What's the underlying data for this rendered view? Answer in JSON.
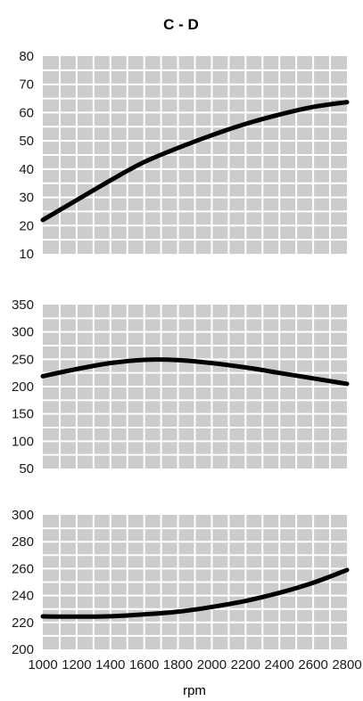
{
  "chart_data": {
    "type": "line",
    "title": "C - D",
    "xlabel": "rpm",
    "x_ticks": [
      "1000",
      "1200",
      "1400",
      "1600",
      "1800",
      "2000",
      "2200",
      "2400",
      "2600",
      "2800"
    ],
    "xlim": [
      1000,
      2800
    ],
    "grid": true,
    "colors": {
      "plot_background": "#cccccc",
      "grid": "#ffffff",
      "line": "#000000"
    },
    "panels": [
      {
        "ylim": [
          10,
          80
        ],
        "y_ticks": [
          "80",
          "70",
          "60",
          "50",
          "40",
          "30",
          "20",
          "10"
        ],
        "series": [
          {
            "x": [
              1000,
              1200,
              1400,
              1600,
              1800,
              2000,
              2200,
              2400,
              2600,
              2800
            ],
            "values": [
              22,
              29,
              36,
              42.5,
              47.5,
              52,
              56,
              59.3,
              62,
              63.7
            ]
          }
        ]
      },
      {
        "ylim": [
          50,
          350
        ],
        "y_ticks": [
          "350",
          "300",
          "250",
          "200",
          "150",
          "100",
          "50"
        ],
        "series": [
          {
            "x": [
              1000,
              1200,
              1400,
              1600,
              1800,
              2000,
              2200,
              2400,
              2600,
              2800
            ],
            "values": [
              219,
              232,
              243,
              249,
              248.5,
              243,
              235,
              225,
              215,
              205
            ]
          }
        ]
      },
      {
        "ylim": [
          200,
          300
        ],
        "y_ticks": [
          "300",
          "280",
          "260",
          "240",
          "220",
          "200"
        ],
        "series": [
          {
            "x": [
              1000,
              1200,
              1400,
              1600,
              1800,
              2000,
              2200,
              2400,
              2600,
              2800
            ],
            "values": [
              224.5,
              224.3,
              224.6,
              226,
              228,
              231.5,
              236,
              242,
              249.5,
              259
            ]
          }
        ]
      }
    ]
  }
}
